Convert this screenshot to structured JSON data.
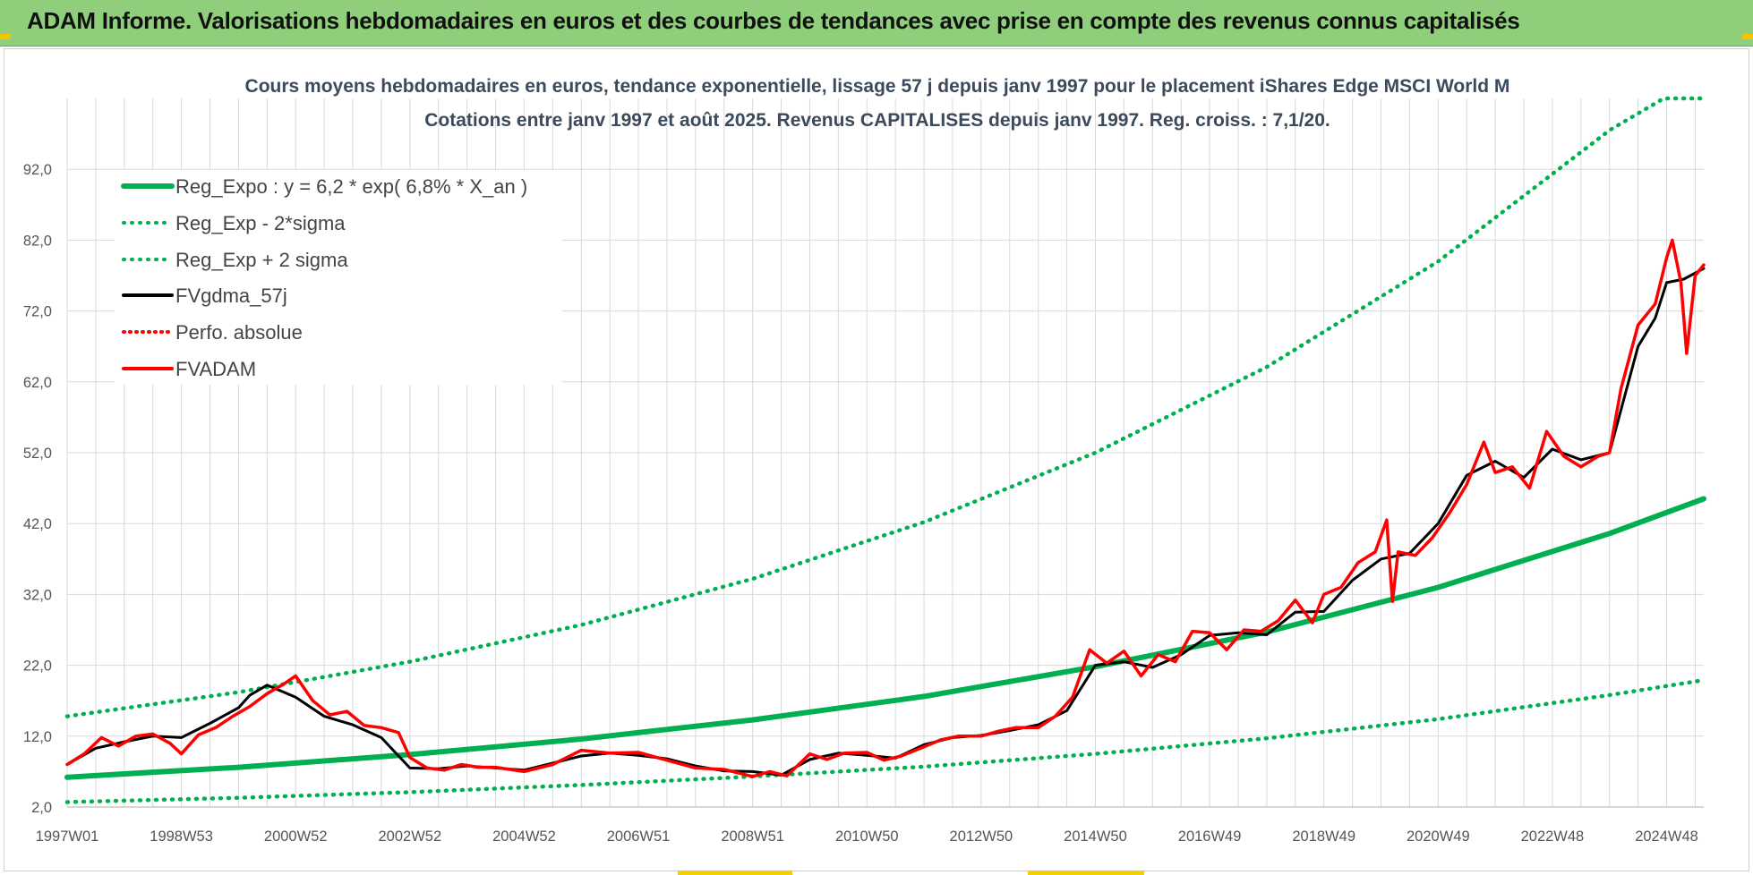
{
  "header": {
    "title": "ADAM Informe. Valorisations hebdomadaires en euros et des courbes de tendances avec prise en compte des revenus connus capitalisés"
  },
  "colors": {
    "header_bg": "#8fcf7b",
    "reg_expo": "#00b050",
    "reg_sigma": "#00b050",
    "fvgdma": "#000000",
    "perfo": "#ff0000",
    "fvadam": "#ff0000",
    "grid": "#d9d9d9"
  },
  "chart_data": {
    "type": "line",
    "title_line1": "Cours moyens hebdomadaires en euros, tendance exponentielle, lissage 57 j depuis janv 1997 pour le placement iShares Edge MSCI World M",
    "title_line2": "Cotations entre janv 1997 et août 2025. Revenus CAPITALISES depuis janv 1997. Reg. croiss. : 7,1/20.",
    "ylim": [
      2,
      102
    ],
    "yticks": [
      "2,0",
      "12,0",
      "22,0",
      "32,0",
      "42,0",
      "52,0",
      "62,0",
      "72,0",
      "82,0",
      "92,0"
    ],
    "ytick_values": [
      2,
      12,
      22,
      32,
      42,
      52,
      62,
      72,
      82,
      92
    ],
    "xlim": [
      1997.0,
      2025.65
    ],
    "xticks": [
      "1997W01",
      "1998W53",
      "2000W52",
      "2002W52",
      "2004W52",
      "2006W51",
      "2008W51",
      "2010W50",
      "2012W50",
      "2014W50",
      "2016W49",
      "2018W49",
      "2020W49",
      "2022W48",
      "2024W48"
    ],
    "xtick_values": [
      1997.0,
      1999.0,
      2001.0,
      2003.0,
      2005.0,
      2007.0,
      2009.0,
      2011.0,
      2013.0,
      2015.0,
      2017.0,
      2019.0,
      2021.0,
      2023.0,
      2025.0
    ],
    "legend_position": "top-left",
    "grid": true,
    "series": [
      {
        "name": "Reg_Expo : y = 6,2 * exp( 6,8% *  X_an )",
        "style": "solid-thick",
        "x": [
          1997.0,
          2000.0,
          2003.0,
          2006.0,
          2009.0,
          2012.0,
          2015.0,
          2018.0,
          2021.0,
          2024.0,
          2025.65
        ],
        "y": [
          6.2,
          7.6,
          9.4,
          11.6,
          14.3,
          17.6,
          21.8,
          26.7,
          33.0,
          40.6,
          45.5
        ]
      },
      {
        "name": "Reg_Exp - 2*sigma",
        "style": "dotted",
        "x": [
          1997.0,
          2000.0,
          2003.0,
          2006.0,
          2009.0,
          2012.0,
          2015.0,
          2018.0,
          2021.0,
          2024.0,
          2025.65
        ],
        "y": [
          2.7,
          3.3,
          4.1,
          5.1,
          6.3,
          7.7,
          9.5,
          11.7,
          14.4,
          17.8,
          19.9
        ]
      },
      {
        "name": "Reg_Exp + 2 sigma",
        "style": "dotted",
        "x": [
          1997.0,
          2000.0,
          2003.0,
          2006.0,
          2009.0,
          2012.0,
          2015.0,
          2018.0,
          2021.0,
          2024.0,
          2024.95,
          2025.65
        ],
        "y": [
          14.8,
          18.2,
          22.5,
          27.7,
          34.2,
          42.2,
          52.0,
          64.1,
          79.0,
          97.5,
          102.0,
          102.0
        ]
      },
      {
        "name": "FVgdma_57j",
        "style": "solid",
        "x": [
          1997.0,
          1997.5,
          1998.0,
          1998.5,
          1999.0,
          1999.5,
          2000.0,
          2000.2,
          2000.5,
          2001.0,
          2001.5,
          2002.0,
          2002.5,
          2003.0,
          2003.5,
          2004.0,
          2005.0,
          2006.0,
          2006.5,
          2007.0,
          2007.5,
          2008.0,
          2008.5,
          2009.0,
          2009.5,
          2010.0,
          2010.5,
          2011.0,
          2011.5,
          2012.0,
          2012.5,
          2013.0,
          2013.5,
          2014.0,
          2014.5,
          2015.0,
          2015.5,
          2016.0,
          2016.5,
          2017.0,
          2017.5,
          2018.0,
          2018.5,
          2019.0,
          2019.5,
          2020.0,
          2020.5,
          2021.0,
          2021.5,
          2022.0,
          2022.5,
          2023.0,
          2023.5,
          2024.0,
          2024.5,
          2024.8,
          2025.0,
          2025.3,
          2025.65
        ],
        "y": [
          8.0,
          10.3,
          11.2,
          12.0,
          11.8,
          13.8,
          16.0,
          17.8,
          19.2,
          17.5,
          14.8,
          13.6,
          11.8,
          7.5,
          7.4,
          7.8,
          7.2,
          9.2,
          9.6,
          9.3,
          8.8,
          7.8,
          7.1,
          7.0,
          6.5,
          8.7,
          9.6,
          9.3,
          8.9,
          10.8,
          11.8,
          12.1,
          12.8,
          13.6,
          15.6,
          22.0,
          22.5,
          21.7,
          23.5,
          26.2,
          26.6,
          26.3,
          29.5,
          29.6,
          34.0,
          37.0,
          37.8,
          42.0,
          48.8,
          50.8,
          48.5,
          52.5,
          51.0,
          52.0,
          67.0,
          71.0,
          76.0,
          76.5,
          78.0
        ]
      },
      {
        "name": "Perfo. absolue",
        "style": "dotted",
        "x": [],
        "y": []
      },
      {
        "name": "FVADAM",
        "style": "solid-thick",
        "x": [
          1997.0,
          1997.3,
          1997.6,
          1997.9,
          1998.2,
          1998.5,
          1998.8,
          1999.0,
          1999.3,
          1999.6,
          1999.9,
          2000.2,
          2000.5,
          2000.8,
          2001.0,
          2001.3,
          2001.6,
          2001.9,
          2002.2,
          2002.5,
          2002.8,
          2003.0,
          2003.3,
          2003.6,
          2003.9,
          2004.2,
          2004.5,
          2005.0,
          2005.5,
          2006.0,
          2006.5,
          2007.0,
          2007.5,
          2008.0,
          2008.5,
          2009.0,
          2009.3,
          2009.6,
          2010.0,
          2010.3,
          2010.6,
          2011.0,
          2011.3,
          2011.6,
          2012.0,
          2012.3,
          2012.6,
          2013.0,
          2013.3,
          2013.6,
          2014.0,
          2014.3,
          2014.6,
          2014.9,
          2015.2,
          2015.5,
          2015.8,
          2016.1,
          2016.4,
          2016.7,
          2017.0,
          2017.3,
          2017.6,
          2017.9,
          2018.2,
          2018.5,
          2018.8,
          2019.0,
          2019.3,
          2019.6,
          2019.9,
          2020.1,
          2020.2,
          2020.3,
          2020.6,
          2020.9,
          2021.2,
          2021.5,
          2021.8,
          2022.0,
          2022.3,
          2022.6,
          2022.9,
          2023.2,
          2023.5,
          2023.8,
          2024.0,
          2024.2,
          2024.5,
          2024.8,
          2025.0,
          2025.1,
          2025.25,
          2025.35,
          2025.5,
          2025.65
        ],
        "y": [
          8.0,
          9.5,
          11.8,
          10.6,
          12.0,
          12.3,
          11.0,
          9.5,
          12.2,
          13.2,
          14.8,
          16.2,
          18.0,
          19.4,
          20.5,
          17.0,
          15.0,
          15.5,
          13.5,
          13.2,
          12.5,
          9.0,
          7.5,
          7.2,
          8.0,
          7.6,
          7.6,
          7.0,
          8.0,
          10.0,
          9.6,
          9.7,
          8.6,
          7.5,
          7.3,
          6.3,
          7.0,
          6.4,
          9.5,
          8.7,
          9.6,
          9.7,
          8.6,
          9.2,
          10.5,
          11.5,
          12.0,
          12.0,
          12.7,
          13.2,
          13.2,
          14.8,
          17.5,
          24.2,
          22.3,
          24.0,
          20.5,
          23.5,
          22.5,
          26.8,
          26.6,
          24.2,
          27.0,
          26.8,
          28.3,
          31.2,
          28.0,
          32.0,
          33.0,
          36.5,
          38.0,
          42.5,
          31.0,
          38.0,
          37.5,
          40.0,
          43.5,
          47.5,
          53.5,
          49.2,
          50.0,
          47.0,
          55.0,
          51.5,
          50.0,
          51.5,
          52.0,
          61.0,
          70.0,
          73.0,
          79.5,
          82.0,
          76.0,
          66.0,
          77.0,
          78.5
        ]
      }
    ]
  }
}
